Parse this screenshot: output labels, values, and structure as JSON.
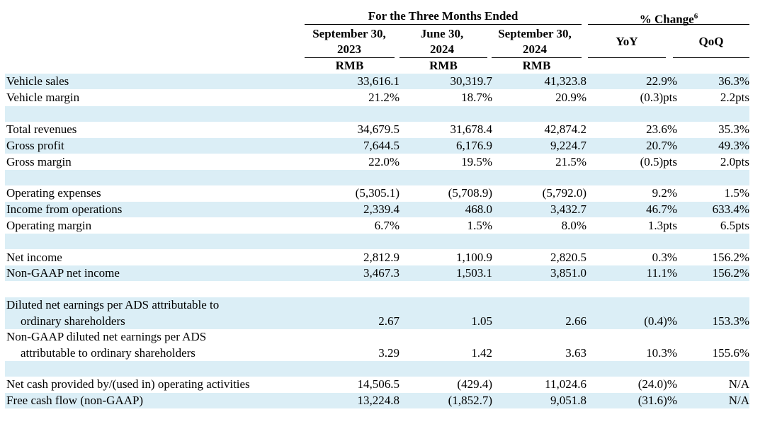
{
  "header": {
    "group_period": "For the Three Months Ended",
    "group_change": "% Change",
    "group_change_sup": "6",
    "columns": [
      {
        "line1": "September 30,",
        "line2": "2023",
        "unit": "RMB"
      },
      {
        "line1": "June 30,",
        "line2": "2024",
        "unit": "RMB"
      },
      {
        "line1": "September 30,",
        "line2": "2024",
        "unit": "RMB"
      },
      {
        "line1": "YoY"
      },
      {
        "line1": "QoQ"
      }
    ]
  },
  "rows": [
    {
      "label": "Vehicle sales",
      "values": [
        "33,616.1",
        "30,319.7",
        "41,323.8",
        "22.9%",
        "36.3%"
      ]
    },
    {
      "label": "Vehicle margin",
      "values": [
        "21.2%",
        "18.7%",
        "20.9%",
        "(0.3)pts",
        "2.2pts"
      ]
    },
    {
      "label": "Total revenues",
      "values": [
        "34,679.5",
        "31,678.4",
        "42,874.2",
        "23.6%",
        "35.3%"
      ]
    },
    {
      "label": "Gross profit",
      "values": [
        "7,644.5",
        "6,176.9",
        "9,224.7",
        "20.7%",
        "49.3%"
      ]
    },
    {
      "label": "Gross margin",
      "values": [
        "22.0%",
        "19.5%",
        "21.5%",
        "(0.5)pts",
        "2.0pts"
      ]
    },
    {
      "label": "Operating expenses",
      "values": [
        "(5,305.1)",
        "(5,708.9)",
        "(5,792.0)",
        "9.2%",
        "1.5%"
      ]
    },
    {
      "label": "Income from operations",
      "values": [
        "2,339.4",
        "468.0",
        "3,432.7",
        "46.7%",
        "633.4%"
      ]
    },
    {
      "label": "Operating margin",
      "values": [
        "6.7%",
        "1.5%",
        "8.0%",
        "1.3pts",
        "6.5pts"
      ]
    },
    {
      "label": "Net income",
      "values": [
        "2,812.9",
        "1,100.9",
        "2,820.5",
        "0.3%",
        "156.2%"
      ]
    },
    {
      "label": "Non-GAAP net income",
      "values": [
        "3,467.3",
        "1,503.1",
        "3,851.0",
        "11.1%",
        "156.2%"
      ]
    },
    {
      "label_line1": "Diluted net earnings per ADS attributable to",
      "label_line2": "ordinary shareholders",
      "values": [
        "2.67",
        "1.05",
        "2.66",
        "(0.4)%",
        "153.3%"
      ]
    },
    {
      "label_line1": "Non-GAAP diluted net earnings per ADS",
      "label_line2": "attributable to ordinary shareholders",
      "values": [
        "3.29",
        "1.42",
        "3.63",
        "10.3%",
        "155.6%"
      ]
    },
    {
      "label": "Net cash provided by/(used in) operating activities",
      "values": [
        "14,506.5",
        "(429.4)",
        "11,024.6",
        "(24.0)%",
        "N/A"
      ]
    },
    {
      "label": "Free cash flow (non-GAAP)",
      "values": [
        "13,224.8",
        "(1,852.7)",
        "9,051.8",
        "(31.6)%",
        "N/A"
      ]
    }
  ]
}
